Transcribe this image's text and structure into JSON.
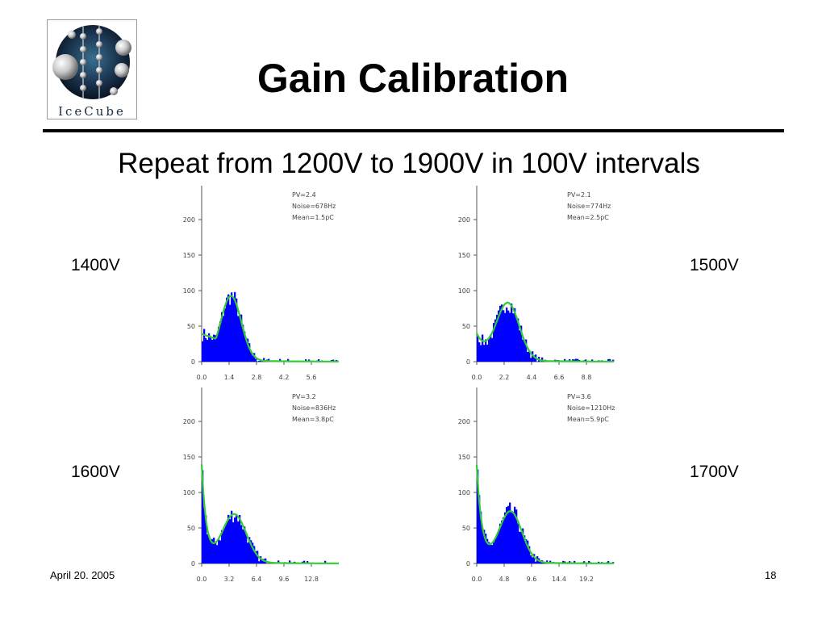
{
  "slide": {
    "title": "Gain Calibration",
    "subtitle": "Repeat from 1200V to 1900V in 100V intervals",
    "logo_text": "IceCube",
    "footer_date": "April 20. 2005",
    "page_number": "18"
  },
  "voltage_labels": [
    "1400V",
    "1500V",
    "1600V",
    "1700V"
  ],
  "colors": {
    "histogram_fill": "#0000ff",
    "fit_line": "#33cc33",
    "axis": "#555555",
    "label_text": "#444444"
  },
  "chart_data": [
    {
      "type": "bar",
      "voltage": "1400V",
      "annotations": [
        "PV=2.4",
        "Noise=678Hz",
        "Mean=1.5pC"
      ],
      "xticks": [
        "0.0",
        "1.4",
        "2.8",
        "4.2",
        "5.6"
      ],
      "yticks": [
        "0",
        "50",
        "100",
        "150",
        "200"
      ],
      "xlim": [
        0,
        7
      ],
      "ylim": [
        0,
        250
      ],
      "peak_center": 1.5,
      "peak_sigma": 0.52,
      "peak_height": 91,
      "ped_amp": 0,
      "ped_decay": 0.5,
      "floor": 36,
      "floor_end": 1.1,
      "xlabel": "",
      "ylabel": ""
    },
    {
      "type": "bar",
      "voltage": "1500V",
      "annotations": [
        "PV=2.1",
        "Noise=774Hz",
        "Mean=2.5pC"
      ],
      "xticks": [
        "0.0",
        "2.2",
        "4.4",
        "6.6",
        "8.8"
      ],
      "yticks": [
        "0",
        "50",
        "100",
        "150",
        "200"
      ],
      "xlim": [
        0,
        11
      ],
      "ylim": [
        0,
        250
      ],
      "peak_center": 2.5,
      "peak_sigma": 0.92,
      "peak_height": 80,
      "ped_amp": 35,
      "ped_decay": 0.8,
      "floor": 0,
      "floor_end": 0,
      "xlabel": "",
      "ylabel": ""
    },
    {
      "type": "bar",
      "voltage": "1600V",
      "annotations": [
        "PV=3.2",
        "Noise=836Hz",
        "Mean=3.8pC"
      ],
      "xticks": [
        "0.0",
        "3.2",
        "6.4",
        "9.6",
        "12.8"
      ],
      "yticks": [
        "0",
        "50",
        "100",
        "150",
        "200"
      ],
      "xlim": [
        0,
        16
      ],
      "ylim": [
        0,
        250
      ],
      "peak_center": 3.8,
      "peak_sigma": 1.4,
      "peak_height": 68,
      "ped_amp": 135,
      "ped_decay": 0.55,
      "floor": 0,
      "floor_end": 0,
      "xlabel": "",
      "ylabel": ""
    },
    {
      "type": "bar",
      "voltage": "1700V",
      "annotations": [
        "PV=3.6",
        "Noise=1210Hz",
        "Mean=5.9pC"
      ],
      "xticks": [
        "0.0",
        "4.8",
        "9.6",
        "14.4",
        "19.2"
      ],
      "yticks": [
        "0",
        "50",
        "100",
        "150",
        "200"
      ],
      "xlim": [
        0,
        24
      ],
      "ylim": [
        0,
        250
      ],
      "peak_center": 5.9,
      "peak_sigma": 2.0,
      "peak_height": 72,
      "ped_amp": 135,
      "ped_decay": 0.9,
      "floor": 0,
      "floor_end": 0,
      "xlabel": "",
      "ylabel": ""
    }
  ]
}
